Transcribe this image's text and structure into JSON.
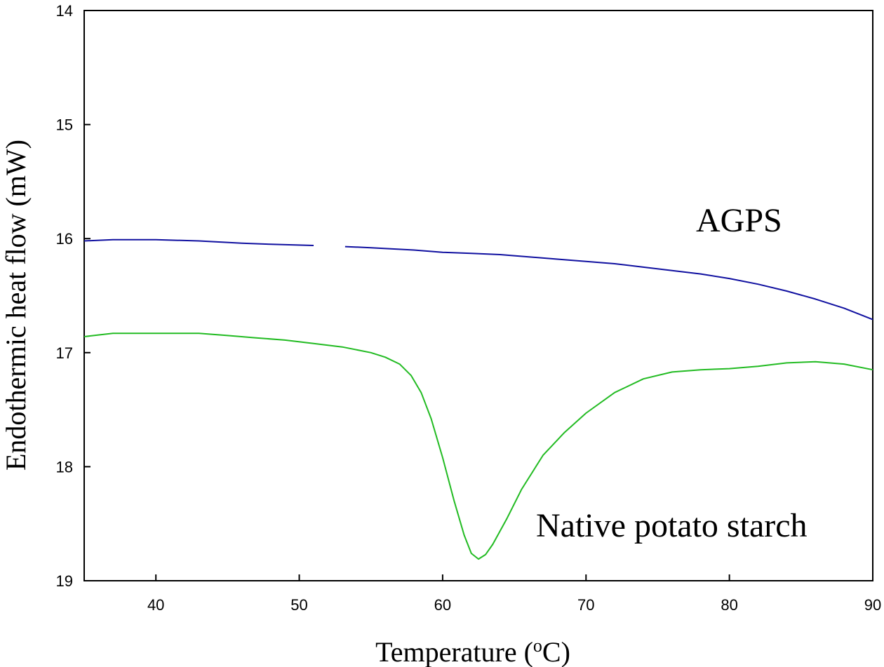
{
  "chart_data": {
    "type": "line",
    "xlabel": "Temperature (",
    "xlabel_sup": "o",
    "xlabel_tail": "C)",
    "ylabel": "Endothermic heat flow (mW)",
    "xlim": [
      35,
      90
    ],
    "ylim": [
      14,
      19
    ],
    "y_inverted": true,
    "grid": false,
    "xticks": [
      40,
      50,
      60,
      70,
      80,
      90
    ],
    "yticks": [
      14,
      15,
      16,
      17,
      18,
      19
    ],
    "series": [
      {
        "name": "AGPS",
        "color": "#1010a0",
        "segments": [
          [
            [
              35,
              16.02
            ],
            [
              37,
              16.01
            ],
            [
              40,
              16.01
            ],
            [
              43,
              16.02
            ],
            [
              46,
              16.04
            ],
            [
              48,
              16.05
            ],
            [
              51,
              16.06
            ]
          ],
          [
            [
              53.2,
              16.07
            ],
            [
              55,
              16.08
            ],
            [
              58,
              16.1
            ],
            [
              60,
              16.12
            ],
            [
              62,
              16.13
            ],
            [
              64,
              16.14
            ],
            [
              66,
              16.16
            ],
            [
              68,
              16.18
            ],
            [
              70,
              16.2
            ],
            [
              72,
              16.22
            ],
            [
              74,
              16.25
            ],
            [
              76,
              16.28
            ],
            [
              78,
              16.31
            ],
            [
              80,
              16.35
            ],
            [
              82,
              16.4
            ],
            [
              84,
              16.46
            ],
            [
              86,
              16.53
            ],
            [
              88,
              16.61
            ],
            [
              90,
              16.71
            ]
          ]
        ]
      },
      {
        "name": "Native potato starch",
        "color": "#22bb22",
        "segments": [
          [
            [
              35,
              16.86
            ],
            [
              37,
              16.83
            ],
            [
              40,
              16.83
            ],
            [
              43,
              16.83
            ],
            [
              45,
              16.85
            ],
            [
              47,
              16.87
            ],
            [
              49,
              16.89
            ],
            [
              51,
              16.92
            ],
            [
              53,
              16.95
            ],
            [
              55,
              17.0
            ],
            [
              56,
              17.04
            ],
            [
              57,
              17.1
            ],
            [
              57.8,
              17.2
            ],
            [
              58.5,
              17.35
            ],
            [
              59.2,
              17.58
            ],
            [
              60,
              17.92
            ],
            [
              60.8,
              18.3
            ],
            [
              61.5,
              18.6
            ],
            [
              62,
              18.76
            ],
            [
              62.5,
              18.81
            ],
            [
              63,
              18.77
            ],
            [
              63.5,
              18.68
            ],
            [
              64.5,
              18.45
            ],
            [
              65.5,
              18.2
            ],
            [
              67,
              17.9
            ],
            [
              68.5,
              17.7
            ],
            [
              70,
              17.53
            ],
            [
              72,
              17.35
            ],
            [
              74,
              17.23
            ],
            [
              76,
              17.17
            ],
            [
              78,
              17.15
            ],
            [
              80,
              17.14
            ],
            [
              82,
              17.12
            ],
            [
              84,
              17.09
            ],
            [
              86,
              17.08
            ],
            [
              88,
              17.1
            ],
            [
              90,
              17.15
            ]
          ]
        ]
      }
    ]
  }
}
